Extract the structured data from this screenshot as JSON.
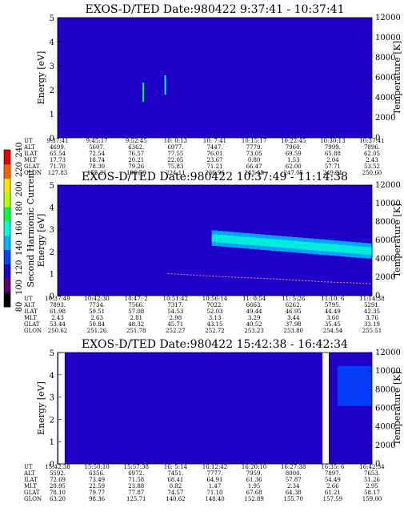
{
  "colorbar": {
    "label": "Second Harmonic Current",
    "ticks": [
      "240",
      "220",
      "200",
      "180",
      "160",
      "140",
      "120",
      "100",
      "80"
    ],
    "colors": [
      "#000000",
      "#5a006e",
      "#1e00c8",
      "#0046ff",
      "#00b4ff",
      "#00ffd2",
      "#00ff3c",
      "#b4ff00",
      "#ffe600",
      "#ff6400",
      "#e60000"
    ]
  },
  "chart_data": [
    {
      "type": "heatmap",
      "title": "EXOS-D/TED   Date:980422  9:37:41 - 10:37:41",
      "ylabel": "Energy [eV]",
      "ylabel_right": "Temperature [K]",
      "ylim": [
        0,
        5
      ],
      "yticks": [
        "0",
        "1",
        "2",
        "3",
        "4",
        "5"
      ],
      "ylim_right": [
        0,
        12000
      ],
      "yticks_right": [
        "0",
        "2000",
        "4000",
        "6000",
        "8000",
        "10000",
        "12000"
      ],
      "ephemeris_labels": [
        "UT",
        "ALT",
        "ILAT",
        "MLT",
        "GLAT",
        "GLON"
      ],
      "ephemeris": [
        [
          "9:37:41",
          "9:45:17",
          "9:52:45",
          "10: 0:13",
          "10: 7:41",
          "10:15:17",
          "10:22:45",
          "10:30:13",
          "10:37:41"
        ],
        [
          "4699.",
          "5607.",
          "6362.",
          "6977.",
          "7447.",
          "7779.",
          "7960.",
          "7999.",
          "7896."
        ],
        [
          "65.54",
          "72.54",
          "76.57",
          "77.55",
          "76.01",
          "73.05",
          "69.59",
          "65.88",
          "62.05"
        ],
        [
          "17.73",
          "18.74",
          "20.21",
          "22.05",
          "23.67",
          "0.80",
          "1.53",
          "2.04",
          "2.43"
        ],
        [
          "71.70",
          "78.30",
          "79.26",
          "75.83",
          "71.21",
          "66.47",
          "62.00",
          "57.71",
          "53.52"
        ],
        [
          "127.83",
          "155.31",
          "196.56",
          "224.11",
          "236.96",
          "243.48",
          "247.05",
          "249.21",
          "250.60"
        ]
      ],
      "background_level": 105,
      "features": [
        {
          "t_frac": 0.27,
          "e": [
            1.5,
            2.3
          ],
          "level": 170
        },
        {
          "t_frac": 0.34,
          "e": [
            1.8,
            2.6
          ],
          "level": 160
        }
      ]
    },
    {
      "type": "heatmap",
      "title": "EXOS-D/TED   Date:980422  10:37:49 - 11:14:38",
      "ylabel": "Energy [eV]",
      "ylabel_right": "Temperature [K]",
      "ylim": [
        0,
        5
      ],
      "yticks": [
        "0",
        "1",
        "2",
        "3",
        "4",
        "5"
      ],
      "ylim_right": [
        0,
        12000
      ],
      "yticks_right": [
        "0",
        "2000",
        "4000",
        "6000",
        "8000",
        "10000",
        "12000"
      ],
      "ephemeris_labels": [
        "UT",
        "ALT",
        "ILAT",
        "MLT",
        "GLAT",
        "GLON"
      ],
      "ephemeris": [
        [
          "10:37:49",
          "10:42:30",
          "10:47: 2",
          "10:51:42",
          "10:56:14",
          "11: 0:54",
          "11: 5:26",
          "11:10: 6",
          "11:14:38"
        ],
        [
          "7893.",
          "7734.",
          "7566.",
          "7317.",
          "7022.",
          "6663.",
          "6262.",
          "5795.",
          "5291."
        ],
        [
          "61.98",
          "59.51",
          "57.08",
          "54.53",
          "52.03",
          "49.44",
          "46.95",
          "44.49",
          "42.35"
        ],
        [
          "2.43",
          "2.63",
          "2.81",
          "2.98",
          "3.13",
          "3.29",
          "3.44",
          "3.60",
          "3.76"
        ],
        [
          "53.44",
          "50.84",
          "48.32",
          "45.71",
          "43.15",
          "40.52",
          "37.98",
          "35.45",
          "33.19"
        ],
        [
          "250.62",
          "251.26",
          "251.78",
          "252.27",
          "252.72",
          "253.23",
          "253.80",
          "254.54",
          "255.51"
        ]
      ],
      "background_level": 105,
      "band": {
        "t_start_frac": 0.49,
        "t_end_frac": 1.0,
        "e_center": [
          2.6,
          2.0
        ],
        "width": 0.7,
        "level": 140
      },
      "temperature_trace": {
        "t_frac": [
          0.35,
          0.5,
          0.7,
          0.85,
          1.0
        ],
        "T": [
          2400,
          2100,
          1800,
          1500,
          1300
        ]
      }
    },
    {
      "type": "heatmap",
      "title": "EXOS-D/TED   Date:980422  15:42:38 - 16:42:34",
      "ylabel": "Energy [eV]",
      "ylabel_right": "Temperature [K]",
      "ylim": [
        0,
        5
      ],
      "yticks": [
        "0",
        "1",
        "2",
        "3",
        "4",
        "5"
      ],
      "ylim_right": [
        0,
        12000
      ],
      "yticks_right": [
        "0",
        "2000",
        "4000",
        "6000",
        "8000",
        "10000",
        "12000"
      ],
      "ephemeris_labels": [
        "UT",
        "ALT",
        "ILAT",
        "MLT",
        "GLAT",
        "GLON"
      ],
      "ephemeris": [
        [
          "15:42:38",
          "15:50:10",
          "15:57:38",
          "16: 5:14",
          "16:12:42",
          "16:20:10",
          "16:27:38",
          "16:35: 6",
          "16:42:34"
        ],
        [
          "5592.",
          "6356.",
          "6972.",
          "7451.",
          "7777.",
          "7959.",
          "8000.",
          "7897.",
          "7653."
        ],
        [
          "72.69",
          "73.49",
          "71.58",
          "68.41",
          "64.91",
          "61.36",
          "57.87",
          "54.49",
          "51.26"
        ],
        [
          "20.95",
          "22.59",
          "23.88",
          "0.82",
          "1.47",
          "1.95",
          "2.34",
          "2.66",
          "2.95"
        ],
        [
          "78.10",
          "79.77",
          "77.87",
          "74.57",
          "71.10",
          "67.68",
          "64.38",
          "61.21",
          "58.17"
        ],
        [
          "63.20",
          "98.36",
          "125.71",
          "140.62",
          "148.40",
          "152.89",
          "155.70",
          "157.59",
          "159.00"
        ]
      ],
      "background_level": 105,
      "gaps_t_frac": [
        0.0,
        0.02,
        0.84,
        0.86
      ],
      "patch": {
        "t_frac": [
          0.89,
          1.0
        ],
        "e": [
          2.6,
          4.4
        ],
        "level": 130
      }
    }
  ]
}
